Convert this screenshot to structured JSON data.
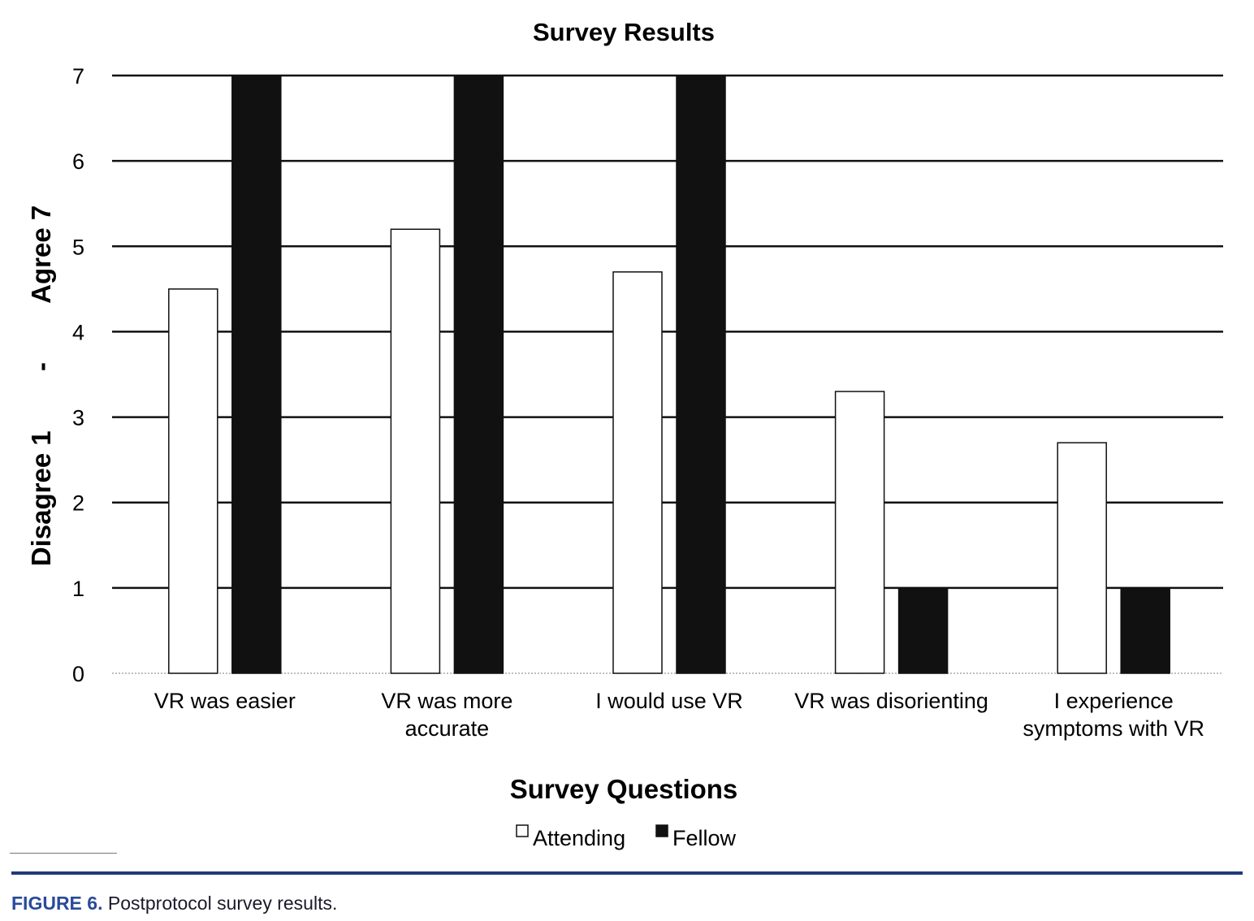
{
  "chart_data": {
    "type": "bar",
    "title": "Survey Results",
    "xlabel": "Survey Questions",
    "ylabel": "Disagree 1        -        Agree 7",
    "ylim": [
      0,
      7
    ],
    "yticks": [
      "0",
      "1",
      "2",
      "3",
      "4",
      "5",
      "6",
      "7"
    ],
    "grid": true,
    "legend_position": "bottom",
    "categories": [
      [
        "VR was easier"
      ],
      [
        "VR was more",
        "accurate"
      ],
      [
        "I would use VR"
      ],
      [
        "VR was disorienting"
      ],
      [
        "I experience",
        "symptoms with VR"
      ]
    ],
    "series": [
      {
        "name": "Attending",
        "color": "#ffffff",
        "values": [
          4.5,
          5.2,
          4.7,
          3.3,
          2.7
        ]
      },
      {
        "name": "Fellow",
        "color": "#111111",
        "values": [
          7,
          7,
          7,
          1,
          1
        ]
      }
    ]
  },
  "caption": {
    "label": "FIGURE 6.",
    "text": "Postprotocol survey results."
  },
  "colors": {
    "accent_rule": "#1f3a78",
    "caption_label": "#2a4a9a"
  }
}
